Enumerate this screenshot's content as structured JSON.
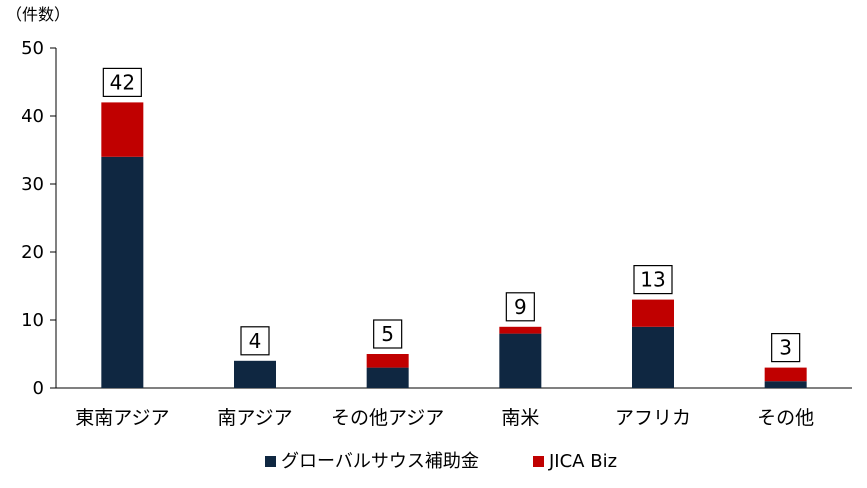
{
  "chart_data": {
    "type": "bar",
    "stacked": true,
    "y_unit_label": "（件数）",
    "categories": [
      "東南アジア",
      "南アジア",
      "その他アジア",
      "南米",
      "アフリカ",
      "その他"
    ],
    "series": [
      {
        "name": "グローバルサウス補助金",
        "color": "#0f2741",
        "values": [
          34,
          4,
          3,
          8,
          9,
          1
        ]
      },
      {
        "name": "JICA Biz",
        "color": "#c00000",
        "values": [
          8,
          0,
          2,
          1,
          4,
          2
        ]
      }
    ],
    "totals": [
      "42",
      "4",
      "5",
      "9",
      "13",
      "3"
    ],
    "ylim": [
      0,
      50
    ],
    "yticks": [
      "0",
      "10",
      "20",
      "30",
      "40",
      "50"
    ],
    "grid": false,
    "legend_position": "bottom"
  }
}
